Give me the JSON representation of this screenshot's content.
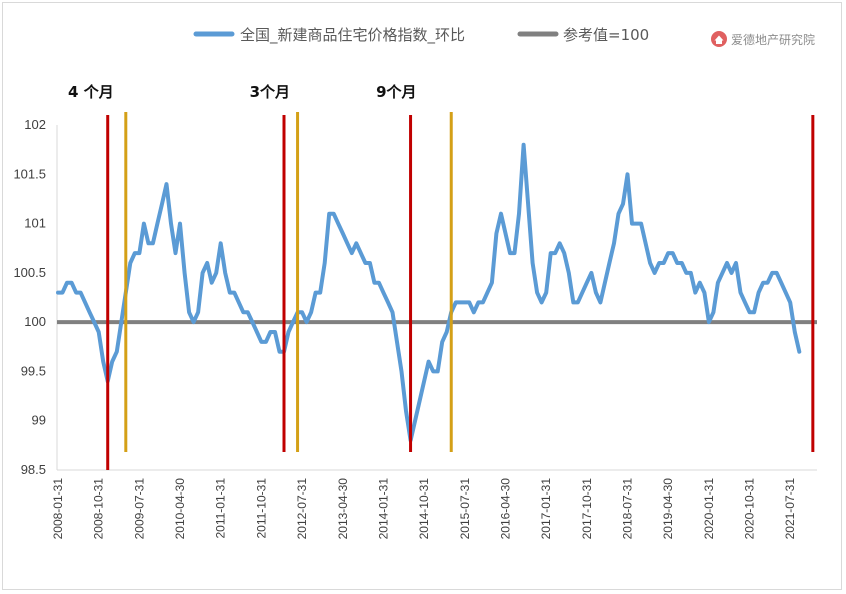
{
  "chart_data": {
    "type": "line",
    "legend_position": "top",
    "series": [
      {
        "name": "全国_新建商品住宅价格指数_环比",
        "color": "#5b9bd5",
        "points": [
          [
            "2008-01",
            100.3
          ],
          [
            "2008-02",
            100.3
          ],
          [
            "2008-03",
            100.4
          ],
          [
            "2008-04",
            100.4
          ],
          [
            "2008-05",
            100.3
          ],
          [
            "2008-06",
            100.3
          ],
          [
            "2008-07",
            100.2
          ],
          [
            "2008-08",
            100.1
          ],
          [
            "2008-09",
            100.0
          ],
          [
            "2008-10",
            99.9
          ],
          [
            "2008-11",
            99.6
          ],
          [
            "2008-12",
            99.4
          ],
          [
            "2009-01",
            99.6
          ],
          [
            "2009-02",
            99.7
          ],
          [
            "2009-03",
            100.0
          ],
          [
            "2009-04",
            100.3
          ],
          [
            "2009-05",
            100.6
          ],
          [
            "2009-06",
            100.7
          ],
          [
            "2009-07",
            100.7
          ],
          [
            "2009-08",
            101.0
          ],
          [
            "2009-09",
            100.8
          ],
          [
            "2009-10",
            100.8
          ],
          [
            "2009-11",
            101.0
          ],
          [
            "2009-12",
            101.2
          ],
          [
            "2010-01",
            101.4
          ],
          [
            "2010-02",
            101.0
          ],
          [
            "2010-03",
            100.7
          ],
          [
            "2010-04",
            101.0
          ],
          [
            "2010-05",
            100.5
          ],
          [
            "2010-06",
            100.1
          ],
          [
            "2010-07",
            100.0
          ],
          [
            "2010-08",
            100.1
          ],
          [
            "2010-09",
            100.5
          ],
          [
            "2010-10",
            100.6
          ],
          [
            "2010-11",
            100.4
          ],
          [
            "2010-12",
            100.5
          ],
          [
            "2011-01",
            100.8
          ],
          [
            "2011-02",
            100.5
          ],
          [
            "2011-03",
            100.3
          ],
          [
            "2011-04",
            100.3
          ],
          [
            "2011-05",
            100.2
          ],
          [
            "2011-06",
            100.1
          ],
          [
            "2011-07",
            100.1
          ],
          [
            "2011-08",
            100.0
          ],
          [
            "2011-09",
            99.9
          ],
          [
            "2011-10",
            99.8
          ],
          [
            "2011-11",
            99.8
          ],
          [
            "2011-12",
            99.9
          ],
          [
            "2012-01",
            99.9
          ],
          [
            "2012-02",
            99.7
          ],
          [
            "2012-03",
            99.7
          ],
          [
            "2012-04",
            99.9
          ],
          [
            "2012-05",
            100.0
          ],
          [
            "2012-06",
            100.1
          ],
          [
            "2012-07",
            100.1
          ],
          [
            "2012-08",
            100.0
          ],
          [
            "2012-09",
            100.1
          ],
          [
            "2012-10",
            100.3
          ],
          [
            "2012-11",
            100.3
          ],
          [
            "2012-12",
            100.6
          ],
          [
            "2013-01",
            101.1
          ],
          [
            "2013-02",
            101.1
          ],
          [
            "2013-03",
            101.0
          ],
          [
            "2013-04",
            100.9
          ],
          [
            "2013-05",
            100.8
          ],
          [
            "2013-06",
            100.7
          ],
          [
            "2013-07",
            100.8
          ],
          [
            "2013-08",
            100.7
          ],
          [
            "2013-09",
            100.6
          ],
          [
            "2013-10",
            100.6
          ],
          [
            "2013-11",
            100.4
          ],
          [
            "2013-12",
            100.4
          ],
          [
            "2014-01",
            100.3
          ],
          [
            "2014-02",
            100.2
          ],
          [
            "2014-03",
            100.1
          ],
          [
            "2014-04",
            99.8
          ],
          [
            "2014-05",
            99.5
          ],
          [
            "2014-06",
            99.1
          ],
          [
            "2014-07",
            98.8
          ],
          [
            "2014-08",
            99.0
          ],
          [
            "2014-09",
            99.2
          ],
          [
            "2014-10",
            99.4
          ],
          [
            "2014-11",
            99.6
          ],
          [
            "2014-12",
            99.5
          ],
          [
            "2015-01",
            99.5
          ],
          [
            "2015-02",
            99.8
          ],
          [
            "2015-03",
            99.9
          ],
          [
            "2015-04",
            100.1
          ],
          [
            "2015-05",
            100.2
          ],
          [
            "2015-06",
            100.2
          ],
          [
            "2015-07",
            100.2
          ],
          [
            "2015-08",
            100.2
          ],
          [
            "2015-09",
            100.1
          ],
          [
            "2015-10",
            100.2
          ],
          [
            "2015-11",
            100.2
          ],
          [
            "2015-12",
            100.3
          ],
          [
            "2016-01",
            100.4
          ],
          [
            "2016-02",
            100.9
          ],
          [
            "2016-03",
            101.1
          ],
          [
            "2016-04",
            100.9
          ],
          [
            "2016-05",
            100.7
          ],
          [
            "2016-06",
            100.7
          ],
          [
            "2016-07",
            101.1
          ],
          [
            "2016-08",
            101.8
          ],
          [
            "2016-09",
            101.2
          ],
          [
            "2016-10",
            100.6
          ],
          [
            "2016-11",
            100.3
          ],
          [
            "2016-12",
            100.2
          ],
          [
            "2017-01",
            100.3
          ],
          [
            "2017-02",
            100.7
          ],
          [
            "2017-03",
            100.7
          ],
          [
            "2017-04",
            100.8
          ],
          [
            "2017-05",
            100.7
          ],
          [
            "2017-06",
            100.5
          ],
          [
            "2017-07",
            100.2
          ],
          [
            "2017-08",
            100.2
          ],
          [
            "2017-09",
            100.3
          ],
          [
            "2017-10",
            100.4
          ],
          [
            "2017-11",
            100.5
          ],
          [
            "2017-12",
            100.3
          ],
          [
            "2018-01",
            100.2
          ],
          [
            "2018-02",
            100.4
          ],
          [
            "2018-03",
            100.6
          ],
          [
            "2018-04",
            100.8
          ],
          [
            "2018-05",
            101.1
          ],
          [
            "2018-06",
            101.2
          ],
          [
            "2018-07",
            101.5
          ],
          [
            "2018-08",
            101.0
          ],
          [
            "2018-09",
            101.0
          ],
          [
            "2018-10",
            101.0
          ],
          [
            "2018-11",
            100.8
          ],
          [
            "2018-12",
            100.6
          ],
          [
            "2019-01",
            100.5
          ],
          [
            "2019-02",
            100.6
          ],
          [
            "2019-03",
            100.6
          ],
          [
            "2019-04",
            100.7
          ],
          [
            "2019-05",
            100.7
          ],
          [
            "2019-06",
            100.6
          ],
          [
            "2019-07",
            100.6
          ],
          [
            "2019-08",
            100.5
          ],
          [
            "2019-09",
            100.5
          ],
          [
            "2019-10",
            100.3
          ],
          [
            "2019-11",
            100.4
          ],
          [
            "2019-12",
            100.3
          ],
          [
            "2020-01",
            100.0
          ],
          [
            "2020-02",
            100.1
          ],
          [
            "2020-03",
            100.4
          ],
          [
            "2020-04",
            100.5
          ],
          [
            "2020-05",
            100.6
          ],
          [
            "2020-06",
            100.5
          ],
          [
            "2020-07",
            100.6
          ],
          [
            "2020-08",
            100.3
          ],
          [
            "2020-09",
            100.2
          ],
          [
            "2020-10",
            100.1
          ],
          [
            "2020-11",
            100.1
          ],
          [
            "2020-12",
            100.3
          ],
          [
            "2021-01",
            100.4
          ],
          [
            "2021-02",
            100.4
          ],
          [
            "2021-03",
            100.5
          ],
          [
            "2021-04",
            100.5
          ],
          [
            "2021-05",
            100.4
          ],
          [
            "2021-06",
            100.3
          ],
          [
            "2021-07",
            100.2
          ],
          [
            "2021-08",
            99.9
          ],
          [
            "2021-09",
            99.7
          ]
        ]
      },
      {
        "name": "参考值=100",
        "color": "#808080",
        "points": [
          [
            "2008-01",
            100
          ],
          [
            "2021-09",
            100
          ]
        ]
      }
    ],
    "x_ticks": [
      "2008-01-31",
      "2008-10-31",
      "2009-07-31",
      "2010-04-30",
      "2011-01-31",
      "2011-10-31",
      "2012-07-31",
      "2013-04-30",
      "2014-01-31",
      "2014-10-31",
      "2015-07-31",
      "2016-04-30",
      "2017-01-31",
      "2017-10-31",
      "2018-07-31",
      "2019-04-30",
      "2020-01-31",
      "2020-10-31",
      "2021-07-31"
    ],
    "y_ticks": [
      "98.5",
      "99",
      "99.5",
      "100",
      "100.5",
      "101",
      "101.5",
      "102"
    ],
    "ylim": [
      98.5,
      102
    ],
    "grid": false,
    "markers": [
      {
        "date": "2008-12",
        "color": "#c00000",
        "kind": "start"
      },
      {
        "date": "2009-04",
        "color": "#d4a017",
        "kind": "end"
      },
      {
        "date": "2012-03",
        "color": "#c00000",
        "kind": "start"
      },
      {
        "date": "2012-06",
        "color": "#d4a017",
        "kind": "end"
      },
      {
        "date": "2014-07",
        "color": "#c00000",
        "kind": "start"
      },
      {
        "date": "2015-04",
        "color": "#d4a017",
        "kind": "end"
      },
      {
        "date": "2021-12",
        "color": "#c00000",
        "kind": "start"
      }
    ],
    "annotations": [
      {
        "text": "4 个月",
        "date": "2008-12"
      },
      {
        "text": "3个月",
        "date": "2012-03"
      },
      {
        "text": "9个月",
        "date": "2014-07"
      }
    ]
  },
  "watermark": {
    "text": "爱德地产研究院",
    "icon": "house-logo-icon",
    "color": "#e06060"
  }
}
